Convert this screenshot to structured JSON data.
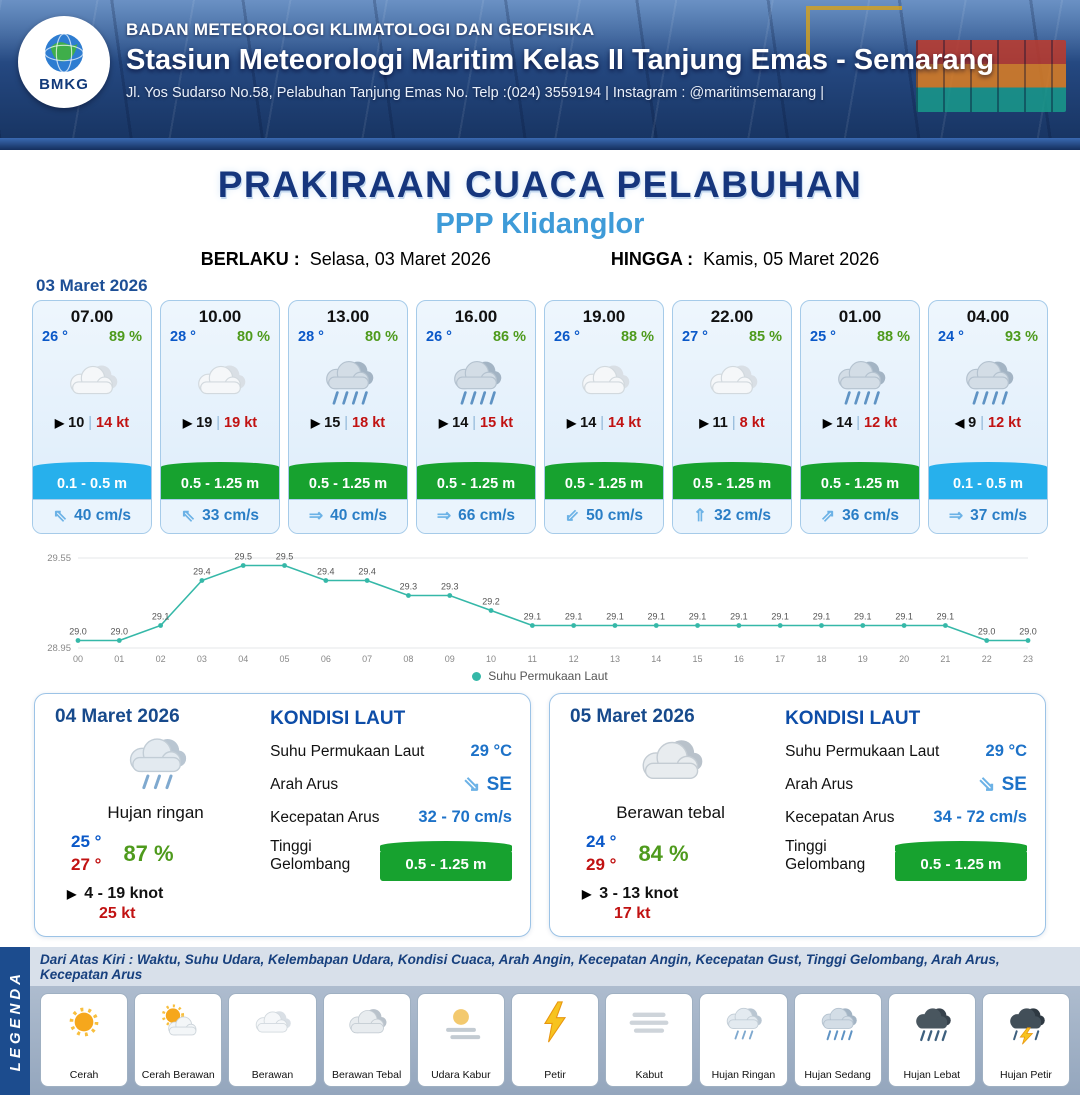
{
  "header": {
    "agency": "BADAN METEOROLOGI KLIMATOLOGI DAN GEOFISIKA",
    "station": "Stasiun Meteorologi Maritim Kelas II Tanjung Emas - Semarang",
    "address": "Jl. Yos Sudarso No.58, Pelabuhan Tanjung Emas No. Telp :(024) 3559194 | Instagram : @maritimsemarang |",
    "logo_text": "BMKG"
  },
  "title": {
    "main": "PRAKIRAAN CUACA PELABUHAN",
    "sub": "PPP Klidanglor",
    "berlaku_label": "BERLAKU :",
    "berlaku_value": "Selasa, 03 Maret 2026",
    "hingga_label": "HINGGA :",
    "hingga_value": "Kamis, 05 Maret 2026"
  },
  "forecast": {
    "date": "03 Maret 2026",
    "sep": "|",
    "cards": [
      {
        "time": "07.00",
        "temp": "26 °",
        "rh": "89 %",
        "icon": "#icon-berawan",
        "icon_name": "cloudy-icon",
        "wind_glyph": "▶",
        "wind_dir": "right",
        "wind_speed": "10",
        "wind_gust": "14 kt",
        "wave": "0.1 - 0.5 m",
        "wave_level": "calm",
        "current_glyph": "⇖",
        "current": "40 cm/s"
      },
      {
        "time": "10.00",
        "temp": "28 °",
        "rh": "80 %",
        "icon": "#icon-berawan",
        "icon_name": "cloudy-icon",
        "wind_glyph": "▶",
        "wind_dir": "right",
        "wind_speed": "19",
        "wind_gust": "19 kt",
        "wave": "0.5 - 1.25 m",
        "wave_level": "low",
        "current_glyph": "⇖",
        "current": "33 cm/s"
      },
      {
        "time": "13.00",
        "temp": "28 °",
        "rh": "80 %",
        "icon": "#icon-hujan-sedang",
        "icon_name": "rain-icon",
        "wind_glyph": "▶",
        "wind_dir": "right",
        "wind_speed": "15",
        "wind_gust": "18 kt",
        "wave": "0.5 - 1.25 m",
        "wave_level": "low",
        "current_glyph": "⇒",
        "current": "40 cm/s"
      },
      {
        "time": "16.00",
        "temp": "26 °",
        "rh": "86 %",
        "icon": "#icon-hujan-sedang",
        "icon_name": "rain-icon",
        "wind_glyph": "▶",
        "wind_dir": "right",
        "wind_speed": "14",
        "wind_gust": "15 kt",
        "wave": "0.5 - 1.25 m",
        "wave_level": "low",
        "current_glyph": "⇒",
        "current": "66 cm/s"
      },
      {
        "time": "19.00",
        "temp": "26 °",
        "rh": "88 %",
        "icon": "#icon-berawan",
        "icon_name": "cloudy-icon",
        "wind_glyph": "▶",
        "wind_dir": "right",
        "wind_speed": "14",
        "wind_gust": "14 kt",
        "wave": "0.5 - 1.25 m",
        "wave_level": "low",
        "current_glyph": "⇙",
        "current": "50 cm/s"
      },
      {
        "time": "22.00",
        "temp": "27 °",
        "rh": "85 %",
        "icon": "#icon-berawan",
        "icon_name": "cloudy-icon",
        "wind_glyph": "▶",
        "wind_dir": "right",
        "wind_speed": "11",
        "wind_gust": "8 kt",
        "wave": "0.5 - 1.25 m",
        "wave_level": "low",
        "current_glyph": "⇑",
        "current": "32 cm/s"
      },
      {
        "time": "01.00",
        "temp": "25 °",
        "rh": "88 %",
        "icon": "#icon-hujan-sedang",
        "icon_name": "rain-icon",
        "wind_glyph": "▶",
        "wind_dir": "right",
        "wind_speed": "14",
        "wind_gust": "12 kt",
        "wave": "0.5 - 1.25 m",
        "wave_level": "low",
        "current_glyph": "⇗",
        "current": "36 cm/s"
      },
      {
        "time": "04.00",
        "temp": "24 °",
        "rh": "93 %",
        "icon": "#icon-hujan-sedang",
        "icon_name": "rain-icon",
        "wind_glyph": "▶",
        "wind_dir": "left",
        "wind_speed": "9",
        "wind_gust": "12 kt",
        "wave": "0.1 - 0.5 m",
        "wave_level": "calm",
        "current_glyph": "⇒",
        "current": "37 cm/s"
      }
    ]
  },
  "chart_data": {
    "type": "line",
    "title": "",
    "series_name": "Suhu Permukaan Laut",
    "x": [
      "00",
      "01",
      "02",
      "03",
      "04",
      "05",
      "06",
      "07",
      "08",
      "09",
      "10",
      "11",
      "12",
      "13",
      "14",
      "15",
      "16",
      "17",
      "18",
      "19",
      "20",
      "21",
      "22",
      "23"
    ],
    "values": [
      29.0,
      29.0,
      29.1,
      29.4,
      29.5,
      29.5,
      29.4,
      29.4,
      29.3,
      29.3,
      29.2,
      29.1,
      29.1,
      29.1,
      29.1,
      29.1,
      29.1,
      29.1,
      29.1,
      29.1,
      29.1,
      29.1,
      29.0,
      29.0
    ],
    "ylim": [
      28.95,
      29.55
    ],
    "xlabel": "",
    "ylabel": "",
    "line_color": "#35b8a8",
    "grid": "top-bottom only",
    "legend_position": "bottom"
  },
  "days": [
    {
      "date": "04 Maret 2026",
      "icon": "#icon-hujan-ringan",
      "icon_name": "light-rain-icon",
      "condition": "Hujan ringan",
      "temp_min": "25 °",
      "temp_max": "27 °",
      "rh": "87 %",
      "wind_glyph": "▶",
      "wind": "4  - 19 knot",
      "gust": "25 kt",
      "sea": {
        "heading": "KONDISI LAUT",
        "sst_label": "Suhu Permukaan Laut",
        "sst": "29 °C",
        "dir_label": "Arah Arus",
        "dir_glyph": "⇘",
        "dir": "SE",
        "speed_label": "Kecepatan Arus",
        "speed": "32 - 70 cm/s",
        "wave_label": "Tinggi Gelombang",
        "wave": "0.5 - 1.25 m",
        "wave_level": "low"
      }
    },
    {
      "date": "05 Maret 2026",
      "icon": "#icon-berawan-tebal",
      "icon_name": "overcast-icon",
      "condition": "Berawan tebal",
      "temp_min": "24 °",
      "temp_max": "29 °",
      "rh": "84 %",
      "wind_glyph": "▶",
      "wind": "3  - 13 knot",
      "gust": "17 kt",
      "sea": {
        "heading": "KONDISI LAUT",
        "sst_label": "Suhu Permukaan Laut",
        "sst": "29 °C",
        "dir_label": "Arah Arus",
        "dir_glyph": "⇘",
        "dir": "SE",
        "speed_label": "Kecepatan Arus",
        "speed": "34 - 72 cm/s",
        "wave_label": "Tinggi Gelombang",
        "wave": "0.5 - 1.25 m",
        "wave_level": "low"
      }
    }
  ],
  "legend": {
    "title": "LEGENDA",
    "description": "Dari Atas Kiri : Waktu, Suhu Udara, Kelembapan Udara, Kondisi Cuaca, Arah Angin, Kecepatan Angin, Kecepatan Gust, Tinggi Gelombang, Arah Arus, Kecepatan Arus",
    "items": [
      {
        "label": "Cerah",
        "icon": "#icon-cerah",
        "icon_name": "sun-icon"
      },
      {
        "label": "Cerah Berawan",
        "icon": "#icon-cerah-berawan",
        "icon_name": "sun-cloud-icon"
      },
      {
        "label": "Berawan",
        "icon": "#icon-berawan",
        "icon_name": "cloud-icon"
      },
      {
        "label": "Berawan Tebal",
        "icon": "#icon-berawan-tebal",
        "icon_name": "thick-cloud-icon"
      },
      {
        "label": "Udara Kabur",
        "icon": "#icon-udara-kabur",
        "icon_name": "haze-icon"
      },
      {
        "label": "Petir",
        "icon": "#icon-petir",
        "icon_name": "lightning-icon"
      },
      {
        "label": "Kabut",
        "icon": "#icon-kabut",
        "icon_name": "fog-icon"
      },
      {
        "label": "Hujan Ringan",
        "icon": "#icon-hujan-ringan",
        "icon_name": "light-rain-icon"
      },
      {
        "label": "Hujan Sedang",
        "icon": "#icon-hujan-sedang",
        "icon_name": "moderate-rain-icon"
      },
      {
        "label": "Hujan Lebat",
        "icon": "#icon-hujan-lebat",
        "icon_name": "heavy-rain-icon"
      },
      {
        "label": "Hujan Petir",
        "icon": "#icon-hujan-petir",
        "icon_name": "thunderstorm-icon"
      }
    ]
  }
}
